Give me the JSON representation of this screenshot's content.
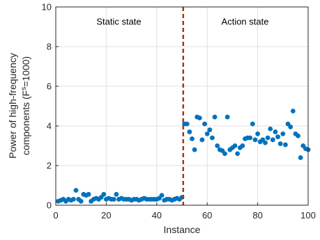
{
  "chart_data": {
    "type": "scatter",
    "xlabel": "Instance",
    "ylabel_line1": "Power of high-frequency",
    "ylabel_line2_pre": "components (F",
    "ylabel_line2_sup": "s",
    "ylabel_line2_post": "=1000)",
    "xlim": [
      0,
      100
    ],
    "ylim": [
      0,
      10
    ],
    "xticks": [
      0,
      20,
      40,
      60,
      80,
      100
    ],
    "yticks": [
      0,
      2,
      4,
      6,
      8,
      10
    ],
    "grid": true,
    "marker_color": "#0072BD",
    "divider_x": 50.5,
    "divider_color": "#A2391D",
    "annotations": [
      {
        "text": "Static state",
        "x": 25,
        "y": 9.1
      },
      {
        "text": "Action state",
        "x": 75,
        "y": 9.1
      }
    ],
    "x": [
      1,
      2,
      3,
      4,
      5,
      6,
      7,
      8,
      9,
      10,
      11,
      12,
      13,
      14,
      15,
      16,
      17,
      18,
      19,
      20,
      21,
      22,
      23,
      24,
      25,
      26,
      27,
      28,
      29,
      30,
      31,
      32,
      33,
      34,
      35,
      36,
      37,
      38,
      39,
      40,
      41,
      42,
      43,
      44,
      45,
      46,
      47,
      48,
      49,
      50,
      51,
      52,
      53,
      54,
      55,
      56,
      57,
      58,
      59,
      60,
      61,
      62,
      63,
      64,
      65,
      66,
      67,
      68,
      69,
      70,
      71,
      72,
      73,
      74,
      75,
      76,
      77,
      78,
      79,
      80,
      81,
      82,
      83,
      84,
      85,
      86,
      87,
      88,
      89,
      90,
      91,
      92,
      93,
      94,
      95,
      96,
      97,
      98,
      99,
      100
    ],
    "y": [
      0.2,
      0.25,
      0.3,
      0.2,
      0.3,
      0.25,
      0.3,
      0.75,
      0.3,
      0.2,
      0.55,
      0.5,
      0.55,
      0.2,
      0.3,
      0.35,
      0.3,
      0.4,
      0.55,
      0.3,
      0.35,
      0.3,
      0.3,
      0.55,
      0.3,
      0.35,
      0.3,
      0.3,
      0.3,
      0.25,
      0.3,
      0.3,
      0.25,
      0.3,
      0.35,
      0.3,
      0.3,
      0.3,
      0.3,
      0.3,
      0.35,
      0.5,
      0.25,
      0.3,
      0.3,
      0.25,
      0.3,
      0.35,
      0.3,
      0.4,
      4.1,
      4.1,
      3.7,
      3.35,
      2.8,
      4.45,
      4.4,
      3.3,
      4.1,
      3.6,
      3.8,
      3.4,
      4.45,
      3.0,
      2.8,
      2.75,
      2.6,
      4.45,
      2.8,
      2.9,
      3.0,
      2.6,
      2.9,
      3.0,
      3.35,
      3.4,
      3.4,
      4.1,
      3.3,
      3.6,
      3.2,
      3.3,
      3.15,
      3.4,
      3.85,
      3.3,
      3.7,
      3.45,
      3.1,
      3.6,
      3.05,
      4.1,
      3.95,
      4.75,
      3.6,
      3.5,
      2.4,
      3.0,
      2.85,
      2.8
    ]
  }
}
